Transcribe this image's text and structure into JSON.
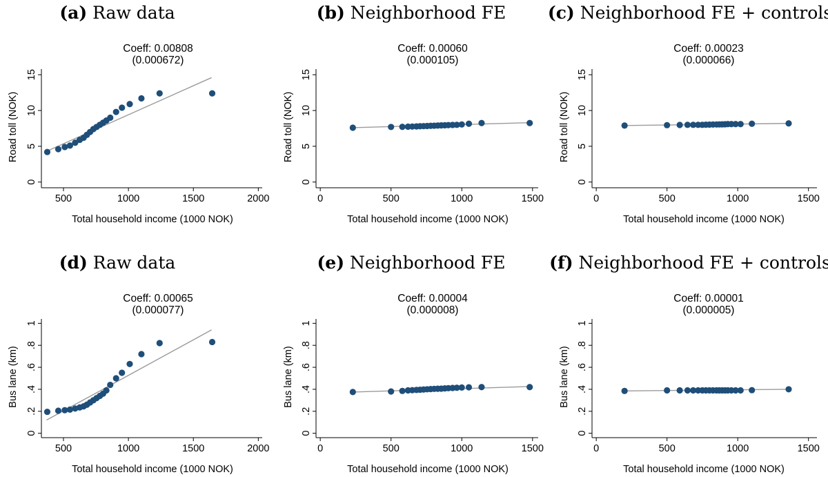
{
  "colors": {
    "marker": "#1f4e79",
    "fit_line": "#9a9a9a",
    "axis": "#000000"
  },
  "chart_data": [
    {
      "type": "scatter",
      "panel_label": "(a)",
      "title": "Raw data",
      "coef": "Coeff: 0.00808",
      "se": "(0.000672)",
      "xlabel": "Total household income (1000 NOK)",
      "ylabel": "Road toll (NOK)",
      "xlim": [
        330,
        2030
      ],
      "ylim": [
        -0.8,
        15.8
      ],
      "xticks": [
        500,
        1000,
        1500,
        2000
      ],
      "xtick_labels": [
        "500",
        "1000",
        "1500",
        "2000"
      ],
      "yticks": [
        0,
        5,
        10,
        15
      ],
      "ytick_labels": [
        "0",
        "5",
        "10",
        "15"
      ],
      "fit": {
        "x": [
          370,
          1640
        ],
        "y": [
          4.3,
          14.6
        ]
      },
      "points": {
        "x": [
          375,
          460,
          510,
          550,
          590,
          625,
          655,
          680,
          705,
          730,
          755,
          780,
          805,
          830,
          860,
          905,
          950,
          1010,
          1100,
          1240,
          1645
        ],
        "y": [
          4.2,
          4.6,
          4.9,
          5.1,
          5.5,
          5.9,
          6.2,
          6.6,
          7.0,
          7.4,
          7.7,
          8.0,
          8.3,
          8.6,
          9.0,
          9.8,
          10.4,
          10.9,
          11.7,
          12.4,
          12.4
        ]
      }
    },
    {
      "type": "scatter",
      "panel_label": "(b)",
      "title": "Neighborhood FE",
      "coef": "Coeff: 0.00060",
      "se": "(0.000105)",
      "xlabel": "Total household income (1000 NOK)",
      "ylabel": "Road toll (NOK)",
      "xlim": [
        -30,
        1540
      ],
      "ylim": [
        -0.8,
        15.8
      ],
      "xticks": [
        0,
        500,
        1000,
        1500
      ],
      "xtick_labels": [
        "0",
        "500",
        "1000",
        "1500"
      ],
      "yticks": [
        0,
        5,
        10,
        15
      ],
      "ytick_labels": [
        "0",
        "5",
        "10",
        "15"
      ],
      "fit": {
        "x": [
          230,
          1480
        ],
        "y": [
          7.6,
          8.3
        ]
      },
      "points": {
        "x": [
          230,
          500,
          580,
          620,
          650,
          680,
          705,
          730,
          755,
          780,
          805,
          830,
          855,
          880,
          905,
          935,
          965,
          1000,
          1050,
          1140,
          1480
        ],
        "y": [
          7.6,
          7.7,
          7.72,
          7.74,
          7.76,
          7.78,
          7.8,
          7.82,
          7.84,
          7.86,
          7.88,
          7.9,
          7.92,
          7.94,
          7.96,
          7.98,
          8.0,
          8.05,
          8.15,
          8.25,
          8.25
        ]
      }
    },
    {
      "type": "scatter",
      "panel_label": "(c)",
      "title": "Neighborhood FE + controls",
      "coef": "Coeff: 0.00023",
      "se": "(0.000066)",
      "xlabel": "Total household income (1000 NOK)",
      "ylabel": "Road toll (NOK)",
      "xlim": [
        -30,
        1560
      ],
      "ylim": [
        -0.8,
        15.8
      ],
      "xticks": [
        0,
        500,
        1000,
        1500
      ],
      "xtick_labels": [
        "0",
        "500",
        "1000",
        "1500"
      ],
      "yticks": [
        0,
        5,
        10,
        15
      ],
      "ytick_labels": [
        "0",
        "5",
        "10",
        "15"
      ],
      "fit": {
        "x": [
          200,
          1360
        ],
        "y": [
          7.9,
          8.2
        ]
      },
      "points": {
        "x": [
          200,
          500,
          590,
          645,
          685,
          720,
          750,
          775,
          800,
          825,
          850,
          870,
          890,
          910,
          930,
          955,
          985,
          1020,
          1100,
          1360
        ],
        "y": [
          7.9,
          7.95,
          7.98,
          8.0,
          8.0,
          8.0,
          8.0,
          8.02,
          8.03,
          8.04,
          8.05,
          8.06,
          8.07,
          8.08,
          8.1,
          8.1,
          8.1,
          8.1,
          8.15,
          8.2
        ]
      }
    },
    {
      "type": "scatter",
      "panel_label": "(d)",
      "title": "Raw data",
      "coef": "Coeff: 0.00065",
      "se": "(0.000077)",
      "xlabel": "Total household income (1000 NOK)",
      "ylabel": "Bus lane (km)",
      "xlim": [
        330,
        2030
      ],
      "ylim": [
        -0.04,
        1.04
      ],
      "xticks": [
        500,
        1000,
        1500,
        2000
      ],
      "xtick_labels": [
        "500",
        "1000",
        "1500",
        "2000"
      ],
      "yticks": [
        0,
        0.2,
        0.4,
        0.6,
        0.8,
        1
      ],
      "ytick_labels": [
        "0",
        ".2",
        ".4",
        ".6",
        ".8",
        "1"
      ],
      "fit": {
        "x": [
          370,
          1640
        ],
        "y": [
          0.12,
          0.94
        ]
      },
      "points": {
        "x": [
          375,
          460,
          510,
          550,
          590,
          625,
          655,
          680,
          705,
          730,
          755,
          780,
          805,
          830,
          860,
          905,
          950,
          1010,
          1100,
          1240,
          1645
        ],
        "y": [
          0.195,
          0.205,
          0.21,
          0.215,
          0.225,
          0.235,
          0.245,
          0.26,
          0.28,
          0.3,
          0.32,
          0.34,
          0.36,
          0.39,
          0.44,
          0.5,
          0.55,
          0.63,
          0.72,
          0.82,
          0.83
        ]
      }
    },
    {
      "type": "scatter",
      "panel_label": "(e)",
      "title": "Neighborhood FE",
      "coef": "Coeff: 0.00004",
      "se": "(0.000008)",
      "xlabel": "Total household income (1000 NOK)",
      "ylabel": "Bus lane (km)",
      "xlim": [
        -30,
        1540
      ],
      "ylim": [
        -0.04,
        1.04
      ],
      "xticks": [
        0,
        500,
        1000,
        1500
      ],
      "xtick_labels": [
        "0",
        "500",
        "1000",
        "1500"
      ],
      "yticks": [
        0,
        0.2,
        0.4,
        0.6,
        0.8,
        1
      ],
      "ytick_labels": [
        "0",
        ".2",
        ".4",
        ".6",
        ".8",
        "1"
      ],
      "fit": {
        "x": [
          230,
          1480
        ],
        "y": [
          0.375,
          0.425
        ]
      },
      "points": {
        "x": [
          230,
          500,
          580,
          620,
          650,
          680,
          705,
          730,
          755,
          780,
          805,
          830,
          855,
          880,
          905,
          935,
          965,
          1000,
          1050,
          1140,
          1480
        ],
        "y": [
          0.375,
          0.38,
          0.385,
          0.39,
          0.392,
          0.394,
          0.396,
          0.398,
          0.4,
          0.402,
          0.404,
          0.405,
          0.406,
          0.408,
          0.41,
          0.412,
          0.414,
          0.416,
          0.418,
          0.42,
          0.42
        ]
      }
    },
    {
      "type": "scatter",
      "panel_label": "(f)",
      "title": "Neighborhood FE + controls",
      "coef": "Coeff: 0.00001",
      "se": "(0.000005)",
      "xlabel": "Total household income (1000 NOK)",
      "ylabel": "Bus lane (km)",
      "xlim": [
        -30,
        1560
      ],
      "ylim": [
        -0.04,
        1.04
      ],
      "xticks": [
        0,
        500,
        1000,
        1500
      ],
      "xtick_labels": [
        "0",
        "500",
        "1000",
        "1500"
      ],
      "yticks": [
        0,
        0.2,
        0.4,
        0.6,
        0.8,
        1
      ],
      "ytick_labels": [
        "0",
        ".2",
        ".4",
        ".6",
        ".8",
        "1"
      ],
      "fit": {
        "x": [
          200,
          1360
        ],
        "y": [
          0.385,
          0.4
        ]
      },
      "points": {
        "x": [
          200,
          500,
          590,
          645,
          685,
          720,
          750,
          775,
          800,
          825,
          850,
          870,
          890,
          910,
          930,
          955,
          985,
          1020,
          1100,
          1360
        ],
        "y": [
          0.385,
          0.39,
          0.39,
          0.39,
          0.39,
          0.39,
          0.39,
          0.39,
          0.39,
          0.39,
          0.39,
          0.39,
          0.39,
          0.39,
          0.39,
          0.39,
          0.39,
          0.39,
          0.392,
          0.4
        ]
      }
    }
  ]
}
